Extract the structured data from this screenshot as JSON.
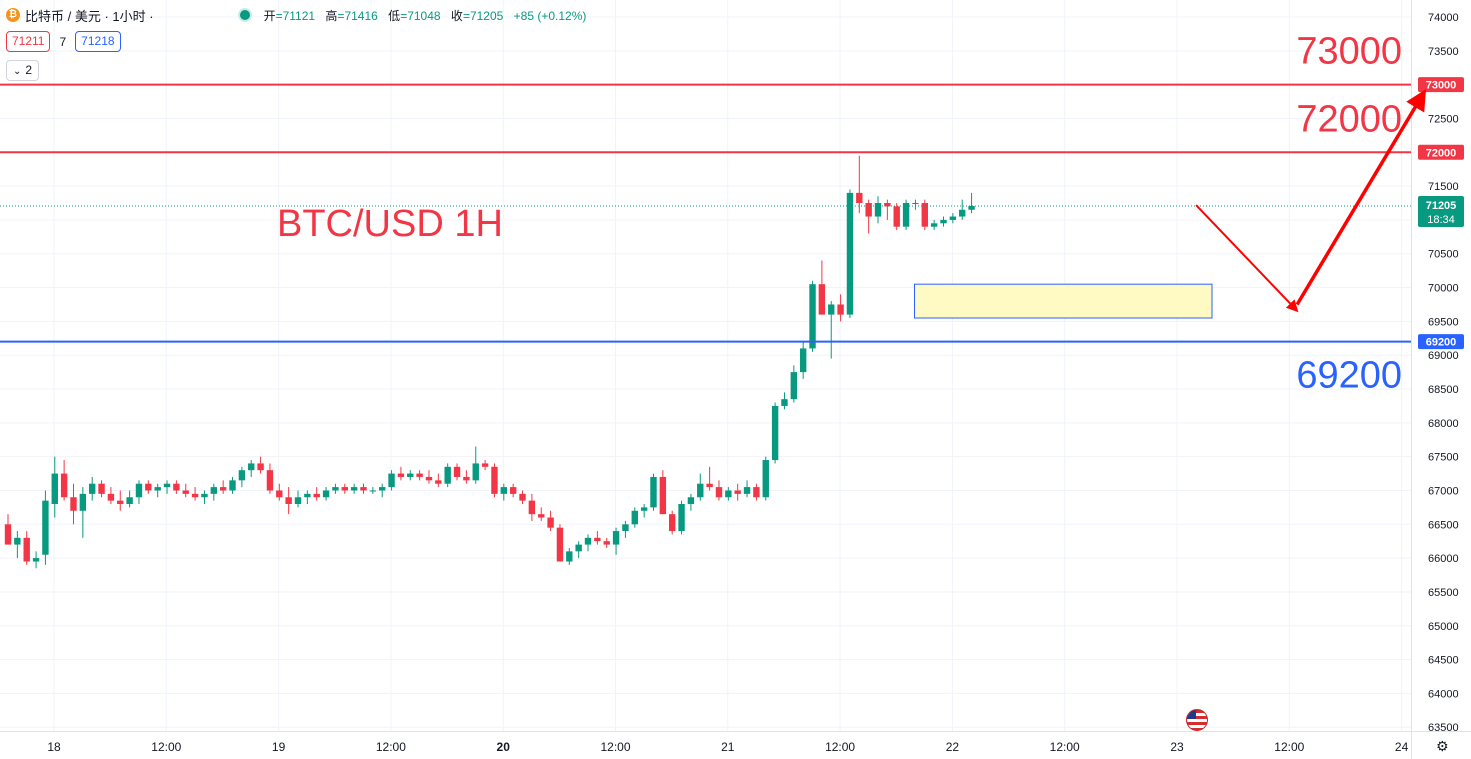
{
  "header": {
    "symbol_title": "比特币 / 美元 · 1小时 ·",
    "coin_icon": "bitcoin-icon",
    "ohlc": {
      "open_label": "开",
      "open_value": "=71121",
      "high_label": "高",
      "high_value": "=71416",
      "low_label": "低",
      "low_value": "=71048",
      "close_label": "收",
      "close_value": "=71205",
      "change": "+85 (+0.12%)"
    }
  },
  "quote": {
    "bid": "71211",
    "spread": "7",
    "ask": "71218"
  },
  "indicator_toggle": {
    "count": "2",
    "icon": "chevron-down-icon"
  },
  "colors": {
    "up": "#089981",
    "down": "#f23645",
    "resistance": "#f23645",
    "support": "#2962ff",
    "zone_fill": "#fff9c4",
    "zone_border": "#2962ff",
    "arrow": "#ff0000",
    "grid": "#f0f3fa",
    "axis_text": "#131722"
  },
  "chart_data": {
    "type": "candlestick",
    "annotation_title": "BTC/USD 1H",
    "y_axis": {
      "min": 63500,
      "max": 74000,
      "ticks": [
        74000,
        73500,
        73000,
        72500,
        72000,
        71500,
        71000,
        70500,
        70000,
        69500,
        69000,
        68500,
        68000,
        67500,
        67000,
        66500,
        66000,
        65500,
        65000,
        64500,
        64000,
        63500
      ]
    },
    "x_axis": {
      "labels": [
        "18",
        "12:00",
        "19",
        "12:00",
        "20",
        "12:00",
        "21",
        "12:00",
        "22",
        "12:00",
        "23",
        "12:00",
        "24"
      ]
    },
    "last_price": {
      "value": "71205",
      "countdown": "18:34"
    },
    "levels": [
      {
        "value": 73000,
        "label": "73000",
        "axis_label": "73000",
        "role": "resistance"
      },
      {
        "value": 72000,
        "label": "72000",
        "axis_label": "72000",
        "role": "resistance"
      },
      {
        "value": 69200,
        "label": "69200",
        "axis_label": "69200",
        "role": "support"
      }
    ],
    "zone": {
      "low": 69550,
      "high": 70050,
      "start_hour": 96.9,
      "end_hour": 128.7
    },
    "arrows": [
      {
        "from": [
          127.0,
          71220
        ],
        "to": [
          137.5,
          69700
        ]
      },
      {
        "from": [
          137.8,
          69750
        ],
        "to": [
          151.0,
          72800
        ]
      }
    ],
    "candles": [
      [
        0,
        66500,
        66650,
        66200,
        66200
      ],
      [
        1,
        66200,
        66400,
        66000,
        66300
      ],
      [
        2,
        66300,
        66400,
        65900,
        65950
      ],
      [
        3,
        65950,
        66100,
        65850,
        66000
      ],
      [
        4,
        66050,
        67000,
        65900,
        66850
      ],
      [
        5,
        66800,
        67500,
        66600,
        67250
      ],
      [
        6,
        67250,
        67450,
        66850,
        66900
      ],
      [
        7,
        66900,
        67100,
        66500,
        66700
      ],
      [
        8,
        66700,
        67050,
        66300,
        66950
      ],
      [
        9,
        66950,
        67200,
        66850,
        67100
      ],
      [
        10,
        67100,
        67150,
        66900,
        66950
      ],
      [
        11,
        66950,
        67050,
        66800,
        66850
      ],
      [
        12,
        66850,
        67000,
        66700,
        66800
      ],
      [
        13,
        66800,
        67000,
        66750,
        66900
      ],
      [
        14,
        66900,
        67150,
        66800,
        67100
      ],
      [
        15,
        67100,
        67150,
        66950,
        67000
      ],
      [
        16,
        67000,
        67100,
        66900,
        67050
      ],
      [
        17,
        67050,
        67150,
        66950,
        67100
      ],
      [
        18,
        67100,
        67150,
        66950,
        67000
      ],
      [
        19,
        67000,
        67100,
        66900,
        66950
      ],
      [
        20,
        66950,
        67050,
        66850,
        66900
      ],
      [
        21,
        66900,
        67000,
        66800,
        66950
      ],
      [
        22,
        66950,
        67100,
        66850,
        67050
      ],
      [
        23,
        67050,
        67150,
        66950,
        67000
      ],
      [
        24,
        67000,
        67200,
        66950,
        67150
      ],
      [
        25,
        67150,
        67350,
        67050,
        67300
      ],
      [
        26,
        67300,
        67450,
        67200,
        67400
      ],
      [
        27,
        67400,
        67500,
        67250,
        67300
      ],
      [
        28,
        67300,
        67400,
        66950,
        67000
      ],
      [
        29,
        67000,
        67100,
        66850,
        66900
      ],
      [
        30,
        66900,
        67050,
        66650,
        66800
      ],
      [
        31,
        66800,
        67000,
        66750,
        66900
      ],
      [
        32,
        66900,
        67000,
        66800,
        66950
      ],
      [
        33,
        66950,
        67050,
        66850,
        66900
      ],
      [
        34,
        66900,
        67050,
        66850,
        67000
      ],
      [
        35,
        67000,
        67100,
        66950,
        67050
      ],
      [
        36,
        67050,
        67100,
        66950,
        67000
      ],
      [
        37,
        67000,
        67100,
        66950,
        67050
      ],
      [
        38,
        67050,
        67100,
        66950,
        67000
      ],
      [
        39,
        67000,
        67050,
        66950,
        67000
      ],
      [
        40,
        67000,
        67100,
        66900,
        67050
      ],
      [
        41,
        67050,
        67300,
        67000,
        67250
      ],
      [
        42,
        67250,
        67350,
        67150,
        67200
      ],
      [
        43,
        67200,
        67300,
        67150,
        67250
      ],
      [
        44,
        67250,
        67300,
        67150,
        67200
      ],
      [
        45,
        67200,
        67300,
        67100,
        67150
      ],
      [
        46,
        67150,
        67250,
        67050,
        67100
      ],
      [
        47,
        67100,
        67400,
        67050,
        67350
      ],
      [
        48,
        67350,
        67400,
        67150,
        67200
      ],
      [
        49,
        67200,
        67300,
        67100,
        67150
      ],
      [
        50,
        67150,
        67650,
        67100,
        67400
      ],
      [
        51,
        67400,
        67450,
        67300,
        67350
      ],
      [
        52,
        67350,
        67400,
        66900,
        66950
      ],
      [
        53,
        66950,
        67100,
        66850,
        67050
      ],
      [
        54,
        67050,
        67100,
        66900,
        66950
      ],
      [
        55,
        66950,
        67000,
        66800,
        66850
      ],
      [
        56,
        66850,
        66950,
        66550,
        66650
      ],
      [
        57,
        66650,
        66750,
        66550,
        66600
      ],
      [
        58,
        66600,
        66700,
        66400,
        66450
      ],
      [
        59,
        66450,
        66500,
        65950,
        65950
      ],
      [
        60,
        65950,
        66150,
        65900,
        66100
      ],
      [
        61,
        66100,
        66250,
        66000,
        66200
      ],
      [
        62,
        66200,
        66350,
        66100,
        66300
      ],
      [
        63,
        66300,
        66400,
        66200,
        66250
      ],
      [
        64,
        66250,
        66300,
        66150,
        66200
      ],
      [
        65,
        66200,
        66450,
        66050,
        66400
      ],
      [
        66,
        66400,
        66550,
        66300,
        66500
      ],
      [
        67,
        66500,
        66750,
        66450,
        66700
      ],
      [
        68,
        66700,
        66800,
        66600,
        66750
      ],
      [
        69,
        66750,
        67250,
        66700,
        67200
      ],
      [
        70,
        67200,
        67300,
        66650,
        66650
      ],
      [
        71,
        66650,
        66700,
        66350,
        66400
      ],
      [
        72,
        66400,
        66850,
        66350,
        66800
      ],
      [
        73,
        66800,
        66950,
        66700,
        66900
      ],
      [
        74,
        66900,
        67250,
        66850,
        67100
      ],
      [
        75,
        67100,
        67350,
        67000,
        67050
      ],
      [
        76,
        67050,
        67150,
        66850,
        66900
      ],
      [
        77,
        66900,
        67050,
        66850,
        67000
      ],
      [
        78,
        67000,
        67100,
        66850,
        66950
      ],
      [
        79,
        66950,
        67150,
        66900,
        67050
      ],
      [
        80,
        67050,
        67100,
        66850,
        66900
      ],
      [
        81,
        66900,
        67500,
        66850,
        67450
      ],
      [
        82,
        67450,
        68300,
        67400,
        68250
      ],
      [
        83,
        68250,
        68450,
        68200,
        68350
      ],
      [
        84,
        68350,
        68850,
        68300,
        68750
      ],
      [
        85,
        68750,
        69200,
        68650,
        69100
      ],
      [
        86,
        69100,
        70100,
        69050,
        70050
      ],
      [
        87,
        70050,
        70400,
        69600,
        69600
      ],
      [
        88,
        69600,
        69800,
        68950,
        69750
      ],
      [
        89,
        69750,
        69900,
        69500,
        69600
      ],
      [
        90,
        69600,
        71450,
        69550,
        71400
      ],
      [
        91,
        71400,
        71950,
        71100,
        71250
      ],
      [
        92,
        71250,
        71300,
        70800,
        71050
      ],
      [
        93,
        71050,
        71350,
        70950,
        71250
      ],
      [
        94,
        71250,
        71300,
        71000,
        71200
      ],
      [
        95,
        71200,
        71250,
        70850,
        70900
      ],
      [
        96,
        70900,
        71300,
        70850,
        71250
      ],
      [
        97,
        71250,
        71300,
        71150,
        71250
      ],
      [
        98,
        71250,
        71300,
        70850,
        70900
      ],
      [
        99,
        70900,
        71000,
        70850,
        70950
      ],
      [
        100,
        70950,
        71050,
        70900,
        71000
      ],
      [
        101,
        71000,
        71100,
        70950,
        71050
      ],
      [
        102,
        71050,
        71300,
        71000,
        71150
      ],
      [
        103,
        71150,
        71400,
        71100,
        71205
      ]
    ]
  }
}
